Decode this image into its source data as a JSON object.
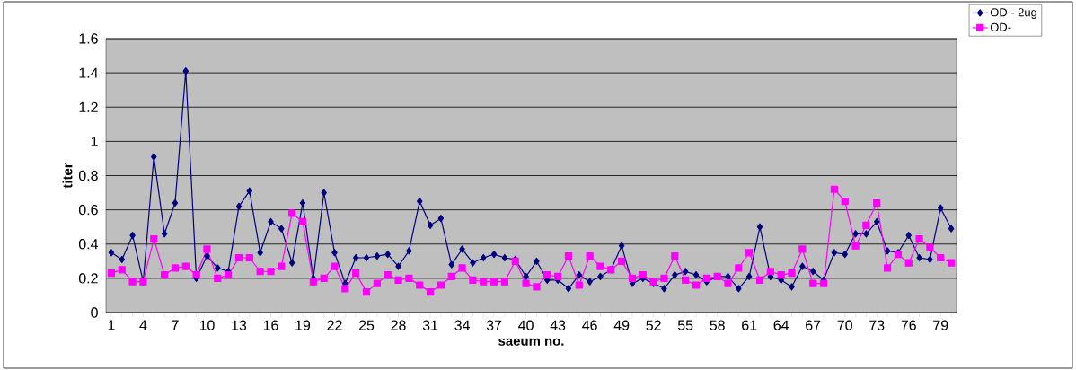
{
  "chart_data": {
    "type": "line",
    "xlabel": "saeum no.",
    "ylabel": "titer",
    "categories": [
      "1",
      null,
      null,
      "4",
      null,
      null,
      "7",
      null,
      null,
      "10",
      null,
      null,
      "13",
      null,
      null,
      "16",
      null,
      null,
      "19",
      null,
      null,
      "22",
      null,
      null,
      "25",
      null,
      null,
      "28",
      null,
      null,
      "31",
      null,
      null,
      "34",
      null,
      null,
      "37",
      null,
      null,
      "40",
      null,
      null,
      "43",
      null,
      null,
      "46",
      null,
      null,
      "49",
      null,
      null,
      "52",
      null,
      null,
      "55",
      null,
      null,
      "58",
      null,
      null,
      "61",
      null,
      null,
      "64",
      null,
      null,
      "67",
      null,
      null,
      "70",
      null,
      null,
      "73",
      null,
      null,
      "76",
      null,
      null,
      "79",
      null
    ],
    "series": [
      {
        "name": "OD - 2ug",
        "color": "#000080",
        "marker": "diamond",
        "values": [
          0.35,
          0.31,
          0.45,
          0.18,
          0.91,
          0.46,
          0.64,
          1.41,
          0.2,
          0.33,
          0.26,
          0.24,
          0.62,
          0.71,
          0.35,
          0.53,
          0.49,
          0.29,
          0.64,
          0.2,
          0.7,
          0.35,
          0.17,
          0.32,
          0.32,
          0.33,
          0.34,
          0.27,
          0.36,
          0.65,
          0.51,
          0.55,
          0.28,
          0.37,
          0.29,
          0.32,
          0.34,
          0.32,
          0.31,
          0.21,
          0.3,
          0.19,
          0.19,
          0.14,
          0.22,
          0.18,
          0.21,
          0.25,
          0.39,
          0.17,
          0.2,
          0.17,
          0.14,
          0.22,
          0.24,
          0.22,
          0.18,
          0.21,
          0.21,
          0.14,
          0.21,
          0.5,
          0.21,
          0.19,
          0.15,
          0.27,
          0.24,
          0.19,
          0.35,
          0.34,
          0.46,
          0.46,
          0.53,
          0.36,
          0.35,
          0.45,
          0.32,
          0.31,
          0.61,
          0.49
        ]
      },
      {
        "name": "OD-",
        "color": "#ff00ff",
        "marker": "square",
        "values": [
          0.23,
          0.25,
          0.18,
          0.18,
          0.43,
          0.22,
          0.26,
          0.27,
          0.22,
          0.37,
          0.2,
          0.22,
          0.32,
          0.32,
          0.24,
          0.24,
          0.27,
          0.58,
          0.53,
          0.18,
          0.2,
          0.27,
          0.14,
          0.23,
          0.12,
          0.17,
          0.22,
          0.19,
          0.2,
          0.16,
          0.12,
          0.16,
          0.21,
          0.26,
          0.19,
          0.18,
          0.18,
          0.18,
          0.3,
          0.17,
          0.15,
          0.22,
          0.21,
          0.33,
          0.16,
          0.33,
          0.27,
          0.25,
          0.3,
          0.2,
          0.22,
          0.18,
          0.2,
          0.33,
          0.19,
          0.16,
          0.2,
          0.21,
          0.17,
          0.26,
          0.35,
          0.19,
          0.24,
          0.22,
          0.23,
          0.37,
          0.17,
          0.17,
          0.72,
          0.65,
          0.39,
          0.51,
          0.64,
          0.26,
          0.34,
          0.29,
          0.43,
          0.38,
          0.32,
          0.29
        ]
      }
    ],
    "ylim": [
      0,
      1.6
    ],
    "yticks": [
      0,
      0.2,
      0.4,
      0.6,
      0.8,
      1,
      1.2,
      1.4,
      1.6
    ],
    "grid": "y",
    "legend": "top right",
    "line_style": "solid"
  }
}
